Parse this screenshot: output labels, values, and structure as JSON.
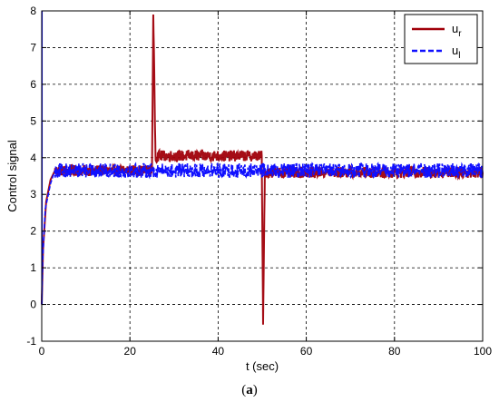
{
  "caption": {
    "open": "(",
    "letter": "a",
    "close": ")"
  },
  "chart_data": {
    "type": "line",
    "xlabel": "t (sec)",
    "ylabel": "Control signal",
    "xlim": [
      0,
      100
    ],
    "ylim": [
      -1,
      8
    ],
    "xticks": [
      0,
      20,
      40,
      60,
      80,
      100
    ],
    "yticks": [
      -1,
      0,
      1,
      2,
      3,
      4,
      5,
      6,
      7,
      8
    ],
    "grid": true,
    "legend": "top-right",
    "series": [
      {
        "name": "u",
        "subscript": "r",
        "color": "#a0000a",
        "style": "solid",
        "noise_amplitude": 0.15,
        "points": [
          [
            0,
            0
          ],
          [
            0.3,
            1.5
          ],
          [
            1,
            2.8
          ],
          [
            2,
            3.4
          ],
          [
            3,
            3.65
          ],
          [
            25,
            3.65
          ],
          [
            25.3,
            7.9
          ],
          [
            25.8,
            4.05
          ],
          [
            49.9,
            4.05
          ],
          [
            50.2,
            -0.55
          ],
          [
            50.6,
            3.6
          ],
          [
            100,
            3.6
          ]
        ]
      },
      {
        "name": "u",
        "subscript": "l",
        "color": "#1010ff",
        "style": "dashed",
        "noise_amplitude": 0.2,
        "points": [
          [
            0,
            0
          ],
          [
            0.2,
            1.2
          ],
          [
            0.8,
            2.6
          ],
          [
            2,
            3.3
          ],
          [
            3,
            3.65
          ],
          [
            100,
            3.65
          ]
        ]
      }
    ]
  }
}
